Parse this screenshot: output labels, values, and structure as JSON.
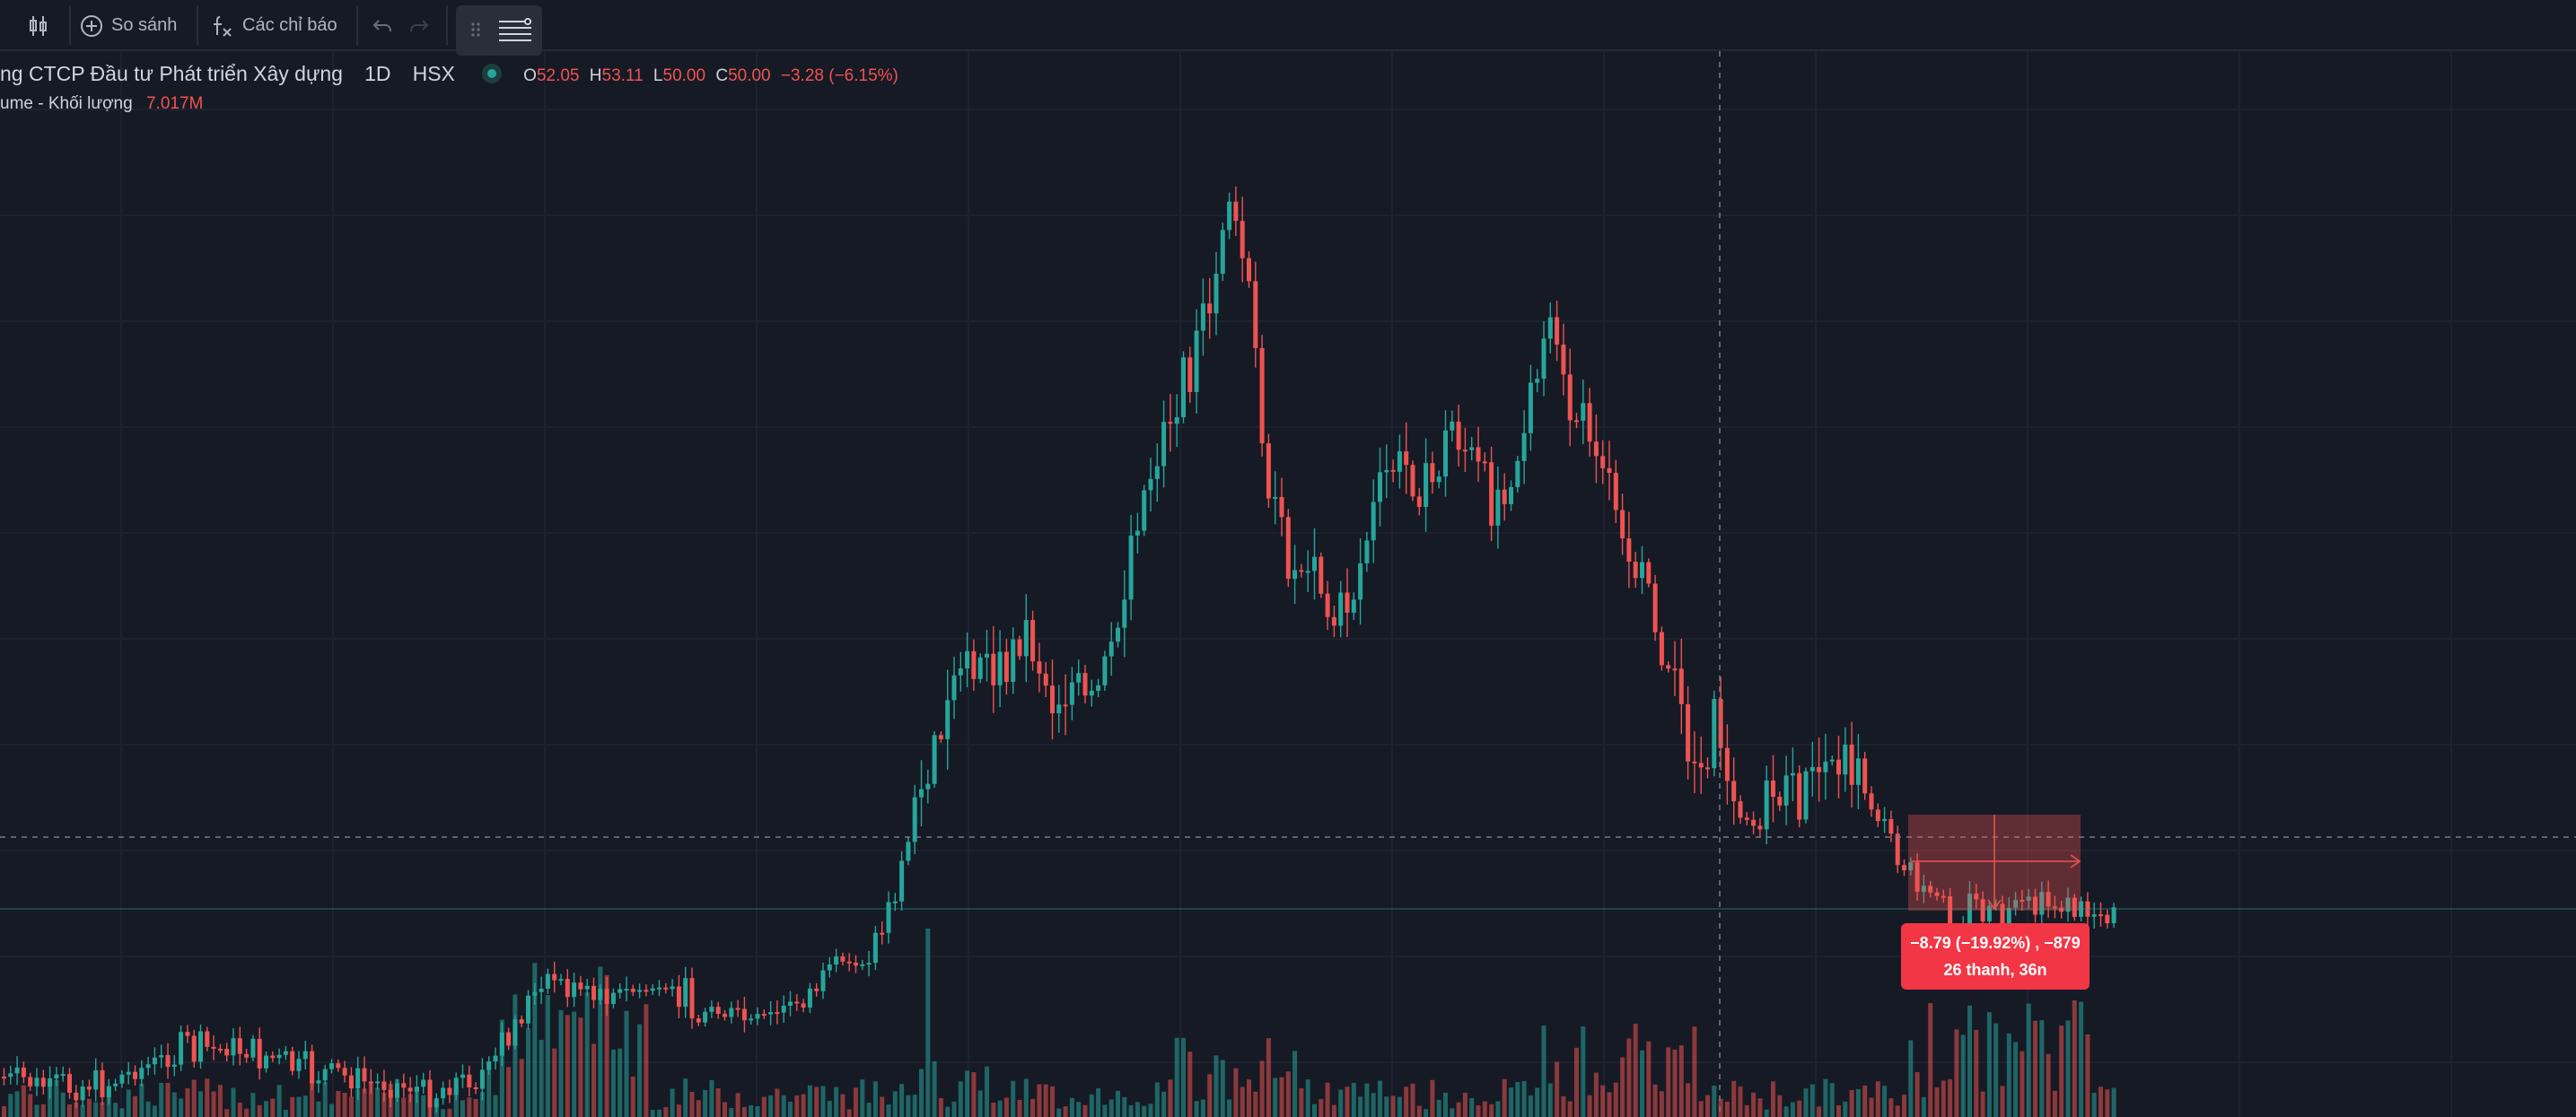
{
  "toolbar": {
    "compare_label": "So sánh",
    "indicators_label": "Các chỉ báo"
  },
  "symbol_legend": {
    "name": "ng CTCP Đầu tư Phát triển Xây dựng",
    "interval": "1D",
    "exchange": "HSX",
    "o_label": "O",
    "o_value": "52.05",
    "h_label": "H",
    "h_value": "53.11",
    "l_label": "L",
    "l_value": "50.00",
    "c_label": "C",
    "c_value": "50.00",
    "change": "−3.28 (−6.15%)"
  },
  "volume_legend": {
    "label": "ume - Khối lượng",
    "value": "7.017M"
  },
  "measure_tooltip": {
    "line1": "−8.79 (−19.92%) , −879",
    "line2": "26 thanh, 36n"
  },
  "colors": {
    "up": "#26a69a",
    "down": "#ef5350",
    "background": "#161a25",
    "tooltip": "#f23645"
  },
  "icons": [
    "candles-icon",
    "plus-circle-icon",
    "fx-icon",
    "undo-icon",
    "redo-icon",
    "drag-handle-icon",
    "drawing-tools-icon"
  ]
}
